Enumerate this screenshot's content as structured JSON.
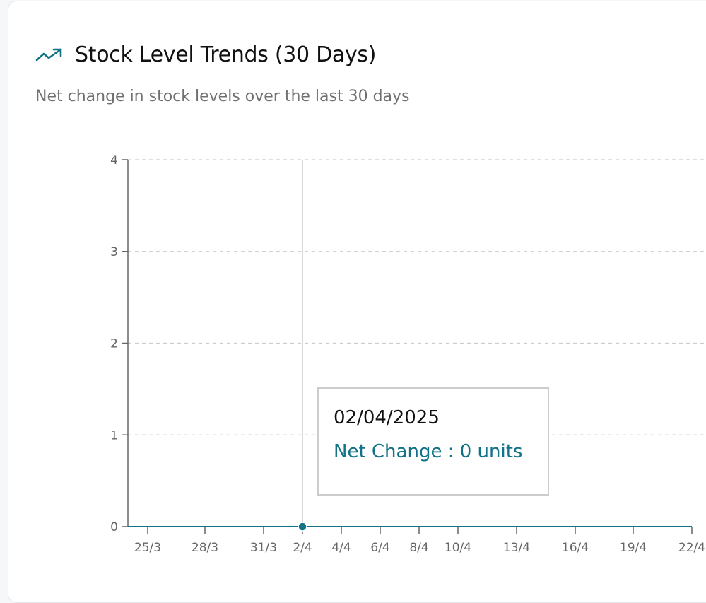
{
  "header": {
    "title": "Stock Level Trends (30 Days)",
    "subtitle": "Net change in stock levels over the last 30 days",
    "icon": "trending-up-icon"
  },
  "colors": {
    "accent": "#127387",
    "grid": "#cccccc",
    "axis": "#666666"
  },
  "tooltip": {
    "date": "02/04/2025",
    "series_label": "Net Change",
    "separator": " : ",
    "value": 0,
    "unit": "units",
    "text": "Net Change : 0 units"
  },
  "chart_data": {
    "type": "line",
    "title": "Stock Level Trends (30 Days)",
    "subtitle": "Net change in stock levels over the last 30 days",
    "xlabel": "",
    "ylabel": "",
    "x": [
      "25/3",
      "28/3",
      "31/3",
      "2/4",
      "4/4",
      "6/4",
      "8/4",
      "10/4",
      "13/4",
      "16/4",
      "19/4",
      "22/4"
    ],
    "series": [
      {
        "name": "Net Change",
        "values": [
          0,
          0,
          0,
          0,
          0,
          0,
          0,
          0,
          0,
          0,
          0,
          0
        ]
      }
    ],
    "y_ticks": [
      0,
      1,
      2,
      3,
      4
    ],
    "ylim": [
      0,
      4
    ],
    "grid": true,
    "active_point": {
      "x": "2/4",
      "y": 0
    }
  }
}
